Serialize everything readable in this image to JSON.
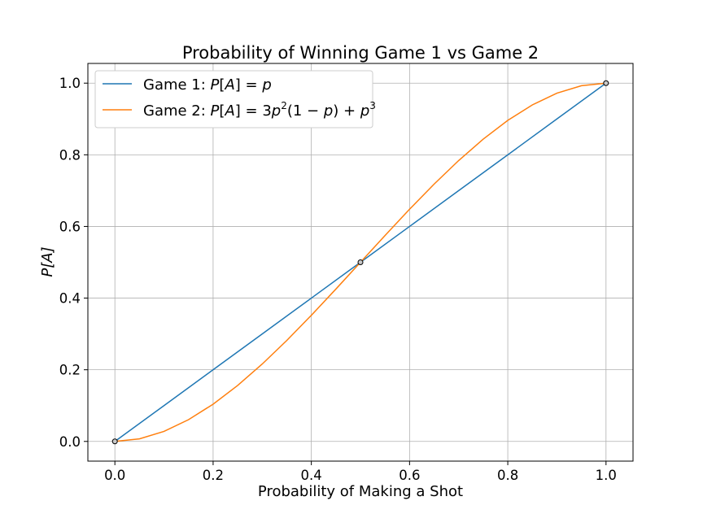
{
  "chart_data": {
    "type": "line",
    "title": "Probability of Winning Game 1 vs Game 2",
    "xlabel": "Probability of Making a Shot",
    "ylabel": "P[A]",
    "xlim": [
      -0.055,
      1.055
    ],
    "ylim": [
      -0.055,
      1.055
    ],
    "xticks": [
      "0.0",
      "0.2",
      "0.4",
      "0.6",
      "0.8",
      "1.0"
    ],
    "yticks": [
      "0.0",
      "0.2",
      "0.4",
      "0.6",
      "0.8",
      "1.0"
    ],
    "grid": true,
    "legend_position": "upper-left",
    "series": [
      {
        "name": "Game 1: P[A] = p",
        "color": "#1f77b4",
        "x": [
          0.0,
          0.1,
          0.2,
          0.3,
          0.4,
          0.5,
          0.6,
          0.7,
          0.8,
          0.9,
          1.0
        ],
        "y": [
          0.0,
          0.1,
          0.2,
          0.3,
          0.4,
          0.5,
          0.6,
          0.7,
          0.8,
          0.9,
          1.0
        ]
      },
      {
        "name": "Game 2: P[A] = 3p²(1 − p) + p³",
        "color": "#ff7f0e",
        "x": [
          0.0,
          0.05,
          0.1,
          0.15,
          0.2,
          0.25,
          0.3,
          0.35,
          0.4,
          0.45,
          0.5,
          0.55,
          0.6,
          0.65,
          0.7,
          0.75,
          0.8,
          0.85,
          0.9,
          0.95,
          1.0
        ],
        "y": [
          0.0,
          0.00725,
          0.028,
          0.06075,
          0.104,
          0.15625,
          0.216,
          0.28175,
          0.352,
          0.42525,
          0.5,
          0.57475,
          0.648,
          0.71825,
          0.784,
          0.84375,
          0.896,
          0.93925,
          0.972,
          0.99275,
          1.0
        ]
      }
    ],
    "markers": {
      "x": [
        0.0,
        0.5,
        1.0
      ],
      "y": [
        0.0,
        0.5,
        1.0
      ]
    },
    "legend": {
      "game1_prefix": "Game 1: ",
      "game2_prefix": "Game 2: "
    }
  }
}
